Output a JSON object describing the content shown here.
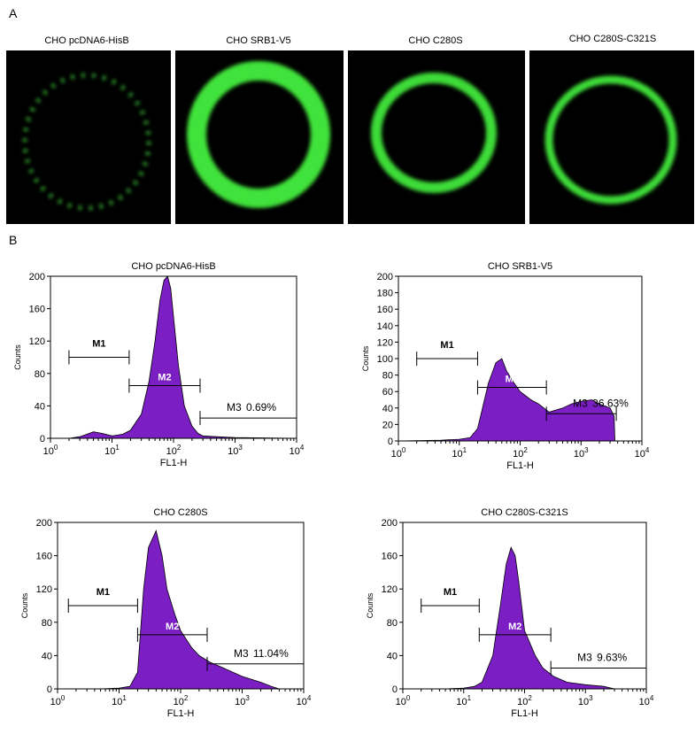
{
  "panel_a": {
    "label": "A",
    "images": [
      {
        "title": "CHO pcDNA6-HisB"
      },
      {
        "title": "CHO SRB1-V5"
      },
      {
        "title": "CHO C280S"
      },
      {
        "title": "CHO C280S-C321S"
      }
    ]
  },
  "panel_b": {
    "label": "B"
  },
  "chart_data": [
    {
      "type": "area",
      "title": "CHO pcDNA6-HisB",
      "xlabel": "FL1-H",
      "ylabel": "Counts",
      "xscale": "log",
      "color": "#7b1fc4",
      "xlim": [
        1,
        10000
      ],
      "ylim": [
        0,
        200
      ],
      "xticks": [
        {
          "value": 1,
          "label": "10",
          "exponent": "0"
        },
        {
          "value": 10,
          "label": "10",
          "exponent": "1"
        },
        {
          "value": 100,
          "label": "10",
          "exponent": "2"
        },
        {
          "value": 1000,
          "label": "10",
          "exponent": "3"
        },
        {
          "value": 10000,
          "label": "10",
          "exponent": "4"
        }
      ],
      "yticks": [
        0,
        40,
        80,
        120,
        160,
        200
      ],
      "x": [
        1,
        2,
        3,
        5,
        7,
        10,
        15,
        20,
        30,
        40,
        50,
        60,
        70,
        80,
        90,
        100,
        120,
        150,
        200,
        250,
        300,
        500,
        1000,
        10000
      ],
      "values": [
        0,
        0,
        2,
        8,
        6,
        3,
        5,
        10,
        30,
        70,
        120,
        170,
        195,
        200,
        185,
        150,
        90,
        40,
        15,
        6,
        3,
        2,
        1,
        0
      ],
      "gates": [
        {
          "label": "M1",
          "range": [
            2,
            19
          ],
          "y": 100
        },
        {
          "label": "M2",
          "range": [
            19,
            270
          ],
          "y": 65
        },
        {
          "label": "M3",
          "range": [
            270,
            10000
          ],
          "y": 25,
          "percent": "0.69%"
        }
      ]
    },
    {
      "type": "area",
      "title": "CHO SRB1-V5",
      "xlabel": "FL1-H",
      "ylabel": "Counts",
      "xscale": "log",
      "color": "#7b1fc4",
      "xlim": [
        1,
        10000
      ],
      "ylim": [
        0,
        200
      ],
      "xticks": [
        {
          "value": 1,
          "label": "10",
          "exponent": "0"
        },
        {
          "value": 10,
          "label": "10",
          "exponent": "1"
        },
        {
          "value": 100,
          "label": "10",
          "exponent": "2"
        },
        {
          "value": 1000,
          "label": "10",
          "exponent": "3"
        },
        {
          "value": 10000,
          "label": "10",
          "exponent": "4"
        }
      ],
      "yticks": [
        0,
        20,
        40,
        60,
        80,
        100,
        120,
        140,
        160,
        180,
        200
      ],
      "x": [
        1,
        5,
        10,
        15,
        20,
        25,
        30,
        40,
        50,
        60,
        80,
        100,
        150,
        200,
        300,
        500,
        700,
        1000,
        1500,
        2000,
        3000,
        3500,
        3600,
        10000
      ],
      "values": [
        0,
        1,
        2,
        4,
        15,
        45,
        70,
        95,
        100,
        85,
        70,
        60,
        50,
        45,
        35,
        40,
        45,
        48,
        50,
        45,
        40,
        30,
        0,
        0
      ],
      "gates": [
        {
          "label": "M1",
          "range": [
            2,
            20
          ],
          "y": 100
        },
        {
          "label": "M2",
          "range": [
            20,
            270
          ],
          "y": 65
        },
        {
          "label": "M3",
          "range": [
            270,
            3800
          ],
          "y": 33,
          "percent": "36.63%"
        }
      ]
    },
    {
      "type": "area",
      "title": "CHO C280S",
      "xlabel": "FL1-H",
      "ylabel": "Counts",
      "xscale": "log",
      "color": "#7b1fc4",
      "xlim": [
        1,
        10000
      ],
      "ylim": [
        0,
        200
      ],
      "xticks": [
        {
          "value": 1,
          "label": "10",
          "exponent": "0"
        },
        {
          "value": 10,
          "label": "10",
          "exponent": "1"
        },
        {
          "value": 100,
          "label": "10",
          "exponent": "2"
        },
        {
          "value": 1000,
          "label": "10",
          "exponent": "3"
        },
        {
          "value": 10000,
          "label": "10",
          "exponent": "4"
        }
      ],
      "yticks": [
        0,
        40,
        80,
        120,
        160,
        200
      ],
      "x": [
        1,
        5,
        10,
        15,
        20,
        25,
        30,
        40,
        50,
        60,
        80,
        100,
        150,
        200,
        300,
        500,
        1000,
        2000,
        3000,
        4000,
        10000
      ],
      "values": [
        0,
        0,
        1,
        3,
        20,
        120,
        170,
        190,
        160,
        120,
        90,
        70,
        50,
        40,
        32,
        25,
        15,
        8,
        3,
        0,
        0
      ],
      "gates": [
        {
          "label": "M1",
          "range": [
            1.5,
            20
          ],
          "y": 100
        },
        {
          "label": "M2",
          "range": [
            20,
            270
          ],
          "y": 65
        },
        {
          "label": "M3",
          "range": [
            270,
            10000
          ],
          "y": 30,
          "percent": "11.04%"
        }
      ]
    },
    {
      "type": "area",
      "title": "CHO C280S-C321S",
      "xlabel": "FL1-H",
      "ylabel": "Counts",
      "xscale": "log",
      "color": "#7b1fc4",
      "xlim": [
        1,
        10000
      ],
      "ylim": [
        0,
        200
      ],
      "xticks": [
        {
          "value": 1,
          "label": "10",
          "exponent": "0"
        },
        {
          "value": 10,
          "label": "10",
          "exponent": "1"
        },
        {
          "value": 100,
          "label": "10",
          "exponent": "2"
        },
        {
          "value": 1000,
          "label": "10",
          "exponent": "3"
        },
        {
          "value": 10000,
          "label": "10",
          "exponent": "4"
        }
      ],
      "yticks": [
        0,
        40,
        80,
        120,
        160,
        200
      ],
      "x": [
        1,
        5,
        10,
        15,
        20,
        30,
        40,
        50,
        60,
        70,
        80,
        100,
        150,
        200,
        300,
        500,
        1000,
        2000,
        3000,
        10000
      ],
      "values": [
        0,
        0,
        1,
        3,
        8,
        40,
        100,
        150,
        170,
        160,
        130,
        70,
        40,
        25,
        15,
        8,
        5,
        3,
        0,
        0
      ],
      "gates": [
        {
          "label": "M1",
          "range": [
            2,
            18
          ],
          "y": 100
        },
        {
          "label": "M2",
          "range": [
            18,
            270
          ],
          "y": 65
        },
        {
          "label": "M3",
          "range": [
            270,
            10000
          ],
          "y": 25,
          "percent": "9.63%"
        }
      ]
    }
  ]
}
